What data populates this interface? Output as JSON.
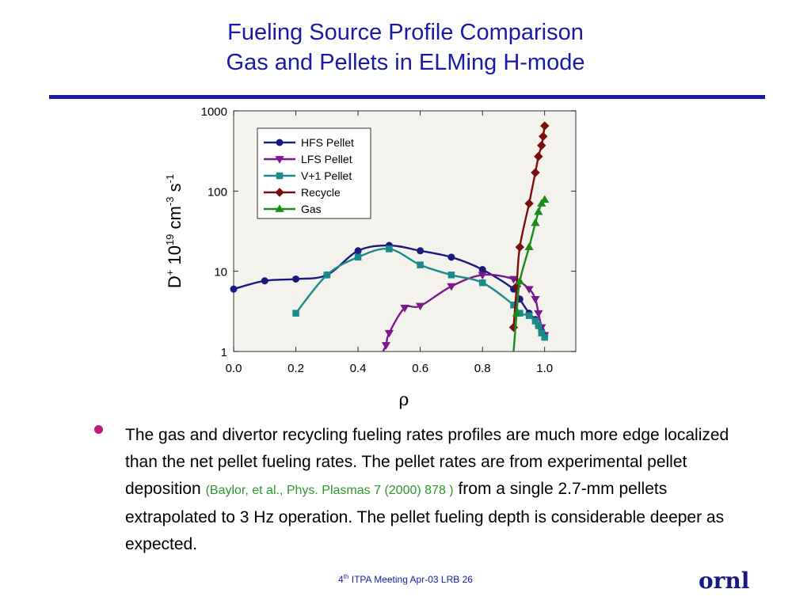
{
  "slide": {
    "title_line1": "Fueling Source Profile Comparison",
    "title_line2": "Gas and Pellets in ELMing H-mode",
    "bullet_main1": "The gas and divertor recycling fueling rates profiles are much more edge localized than the net pellet fueling rates. The pellet rates are from experimental pellet deposition ",
    "bullet_cite": "(Baylor, et al., Phys. Plasmas  7 (2000) 878 )",
    "bullet_main2": " from a single 2.7-mm pellets extrapolated to 3 Hz operation. The pellet fueling depth is considerable deeper as expected.",
    "footer_num": "4",
    "footer_sup": "th",
    "footer_text": " ITPA Meeting  Apr-03   LRB     26",
    "logo_text": "ornl"
  },
  "colors": {
    "title": "#1a1aa8",
    "bullet": "#c2187a",
    "citation": "#2a9a2a",
    "plot_bg": "#f3f2ec"
  },
  "chart_data": {
    "type": "line",
    "xlabel": "ρ",
    "ylabel_parts": {
      "base": "D",
      "sup1": "+",
      "mid1": " 10",
      "sup2": "19",
      "mid2": " cm",
      "sup3": "-3",
      "mid3": " s",
      "sup4": "-1"
    },
    "xlim": [
      0,
      1.1
    ],
    "ylim": [
      1,
      1000
    ],
    "yscale": "log",
    "xticks": [
      "0.0",
      "0.2",
      "0.4",
      "0.6",
      "0.8",
      "1.0"
    ],
    "xtick_values": [
      0,
      0.2,
      0.4,
      0.6,
      0.8,
      1.0
    ],
    "yticks": [
      "1",
      "10",
      "100",
      "1000"
    ],
    "ytick_values": [
      1,
      10,
      100,
      1000
    ],
    "legend_position": "top-center",
    "series": [
      {
        "name": "HFS Pellet",
        "color": "#1a1a7e",
        "marker": "circle",
        "x": [
          0.0,
          0.1,
          0.2,
          0.3,
          0.4,
          0.5,
          0.6,
          0.7,
          0.8,
          0.9,
          0.92,
          0.95,
          0.97,
          0.98,
          0.99,
          1.0
        ],
        "y": [
          6.0,
          7.6,
          8.0,
          9.0,
          18.0,
          21.0,
          18.0,
          15.0,
          10.5,
          6.0,
          4.5,
          3.0,
          2.5,
          2.1,
          1.8,
          1.6
        ]
      },
      {
        "name": "LFS Pellet",
        "color": "#7a1a8a",
        "marker": "triangle-down",
        "x": [
          0.48,
          0.49,
          0.5,
          0.55,
          0.6,
          0.7,
          0.8,
          0.9,
          0.95,
          0.97,
          0.98,
          0.99,
          1.0
        ],
        "y": [
          1.0,
          1.2,
          1.7,
          3.5,
          3.7,
          6.5,
          9.0,
          8.0,
          6.0,
          4.5,
          3.0,
          2.0,
          1.6
        ]
      },
      {
        "name": "V+1 Pellet",
        "color": "#1a8a8a",
        "marker": "square",
        "x": [
          0.2,
          0.3,
          0.4,
          0.5,
          0.6,
          0.7,
          0.8,
          0.9,
          0.92,
          0.95,
          0.97,
          0.98,
          0.99,
          1.0
        ],
        "y": [
          3.0,
          9.0,
          15.0,
          19.0,
          12.0,
          9.0,
          7.2,
          3.8,
          3.0,
          2.8,
          2.4,
          2.1,
          1.7,
          1.5
        ]
      },
      {
        "name": "Recycle",
        "color": "#7a0e0e",
        "marker": "diamond",
        "x": [
          0.9,
          0.91,
          0.92,
          0.95,
          0.97,
          0.98,
          0.99,
          0.995,
          1.0
        ],
        "y": [
          2.0,
          6.5,
          20.0,
          70.0,
          170.0,
          270.0,
          370.0,
          480.0,
          650.0
        ]
      },
      {
        "name": "Gas",
        "color": "#1a8a1a",
        "marker": "triangle-up",
        "x": [
          0.9,
          0.91,
          0.92,
          0.95,
          0.97,
          0.98,
          0.99,
          1.0
        ],
        "y": [
          1.0,
          3.0,
          7.5,
          20.0,
          40.0,
          55.0,
          70.0,
          78.0
        ]
      }
    ]
  }
}
